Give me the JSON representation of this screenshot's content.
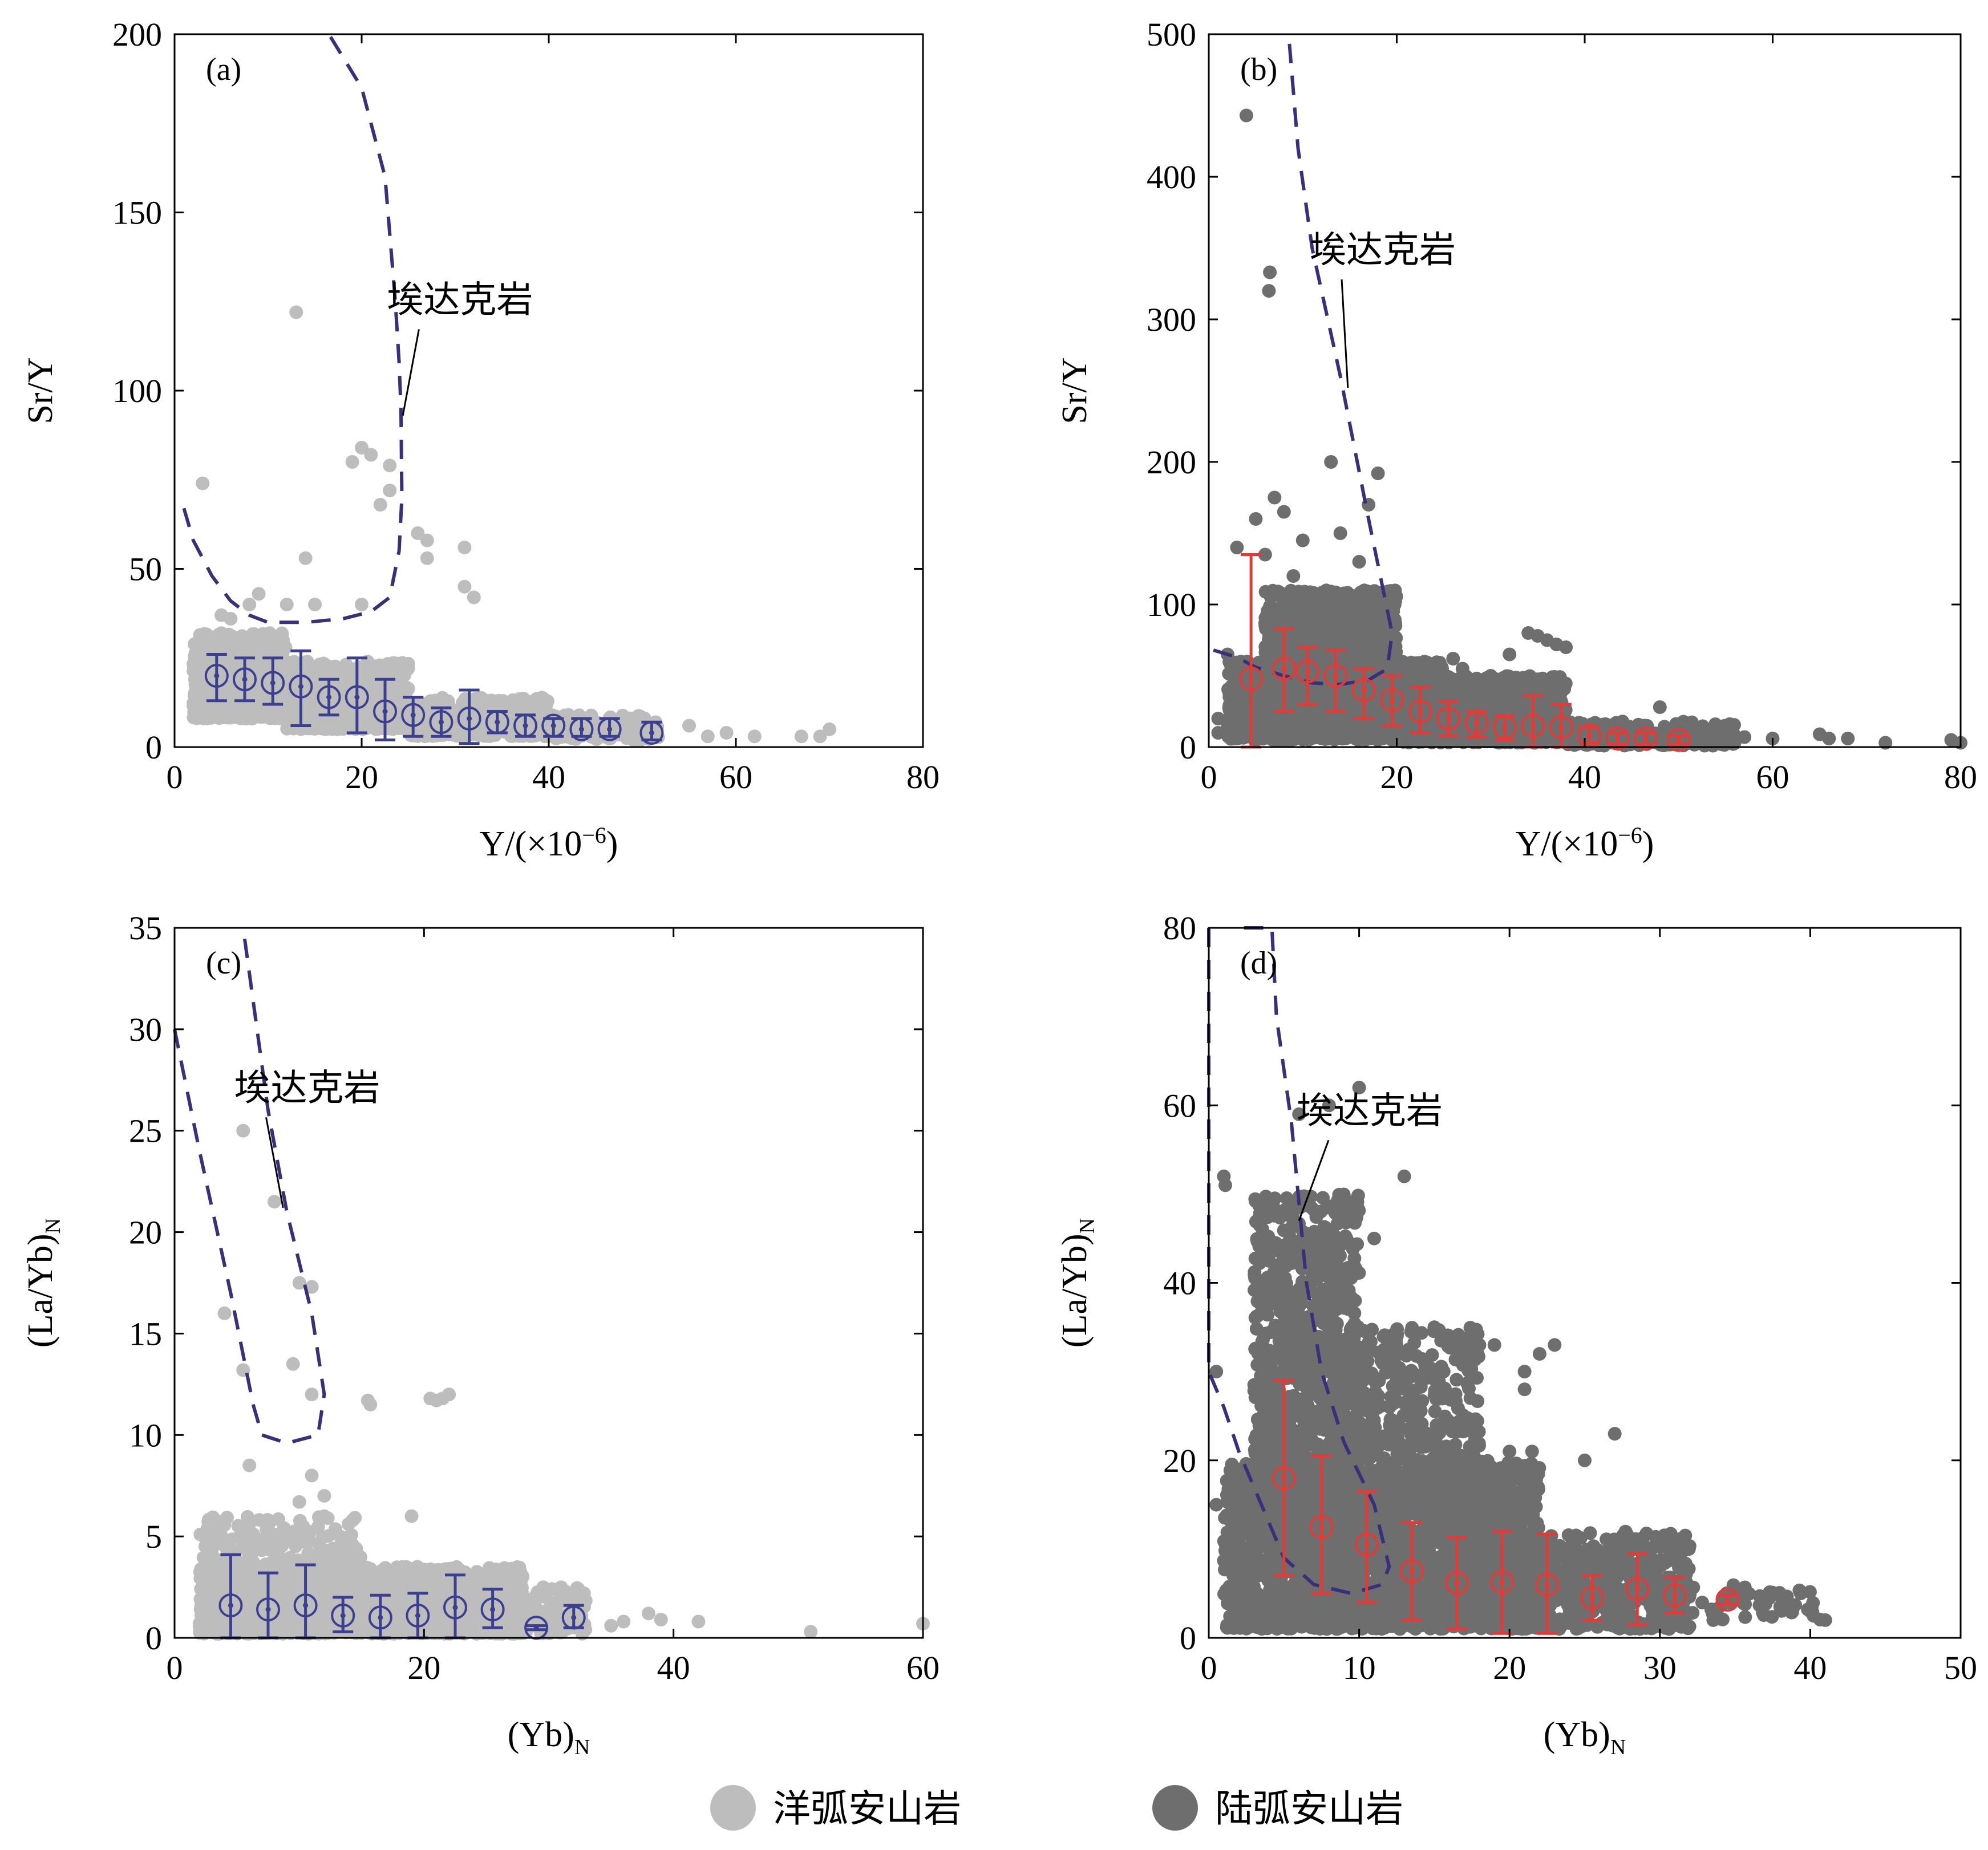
{
  "colors": {
    "oceanic": "#bdbdbd",
    "continental": "#6e6e6e",
    "oceanic_mean": "#3b3f8f",
    "continental_mean": "#e53935",
    "adakite_boundary": "#3a2f7a"
  },
  "legend": {
    "oceanic_label": "洋弧安山岩",
    "continental_label": "陆弧安山岩"
  },
  "chart_data": [
    {
      "type": "scatter",
      "panel": "(a)",
      "xlabel": "Y/(×10⁻⁶)",
      "ylabel": "Sr/Y",
      "xlim": [
        0,
        80
      ],
      "ylim": [
        0,
        200
      ],
      "xticks": [
        0,
        20,
        40,
        60,
        80
      ],
      "yticks": [
        0,
        50,
        100,
        150,
        200
      ],
      "annotation": "埃达克岩",
      "group": "oceanic",
      "cloud": [
        {
          "x0": 2,
          "x1": 12,
          "y0": 8,
          "y1": 32,
          "n": 700
        },
        {
          "x0": 12,
          "x1": 25,
          "y0": 5,
          "y1": 24,
          "n": 650
        },
        {
          "x0": 25,
          "x1": 40,
          "y0": 3,
          "y1": 14,
          "n": 420
        },
        {
          "x0": 40,
          "x1": 52,
          "y0": 2,
          "y1": 9,
          "n": 120
        }
      ],
      "outliers": [
        [
          13,
          122
        ],
        [
          20,
          84
        ],
        [
          21,
          82
        ],
        [
          19,
          80
        ],
        [
          23,
          79
        ],
        [
          22,
          68
        ],
        [
          23,
          72
        ],
        [
          3,
          74
        ],
        [
          26,
          60
        ],
        [
          27,
          58
        ],
        [
          27,
          53
        ],
        [
          31,
          56
        ],
        [
          31,
          45
        ],
        [
          32,
          42
        ],
        [
          14,
          53
        ],
        [
          9,
          43
        ],
        [
          8,
          40
        ],
        [
          12,
          40
        ],
        [
          15,
          40
        ],
        [
          20,
          40
        ],
        [
          55,
          6
        ],
        [
          57,
          3
        ],
        [
          59,
          4
        ],
        [
          62,
          3
        ],
        [
          67,
          3
        ],
        [
          69,
          3
        ],
        [
          70,
          5
        ],
        [
          5,
          37
        ],
        [
          6,
          36
        ]
      ],
      "boundary": [
        [
          1,
          67
        ],
        [
          2,
          58
        ],
        [
          4,
          48
        ],
        [
          6,
          41
        ],
        [
          8,
          37
        ],
        [
          10,
          35
        ],
        [
          14,
          35
        ],
        [
          18,
          36
        ],
        [
          21,
          38
        ],
        [
          23,
          42
        ],
        [
          24,
          55
        ],
        [
          24.3,
          70
        ],
        [
          24.2,
          95
        ],
        [
          24,
          108
        ],
        [
          23.6,
          125
        ],
        [
          22.5,
          160
        ],
        [
          20,
          185
        ],
        [
          16.5,
          200
        ]
      ],
      "label_anchor": [
        31,
        122
      ],
      "leader_end": [
        24.4,
        93
      ],
      "means": [
        {
          "x": 4.5,
          "y": 20,
          "lo": 13,
          "hi": 26
        },
        {
          "x": 7.5,
          "y": 19,
          "lo": 13,
          "hi": 25
        },
        {
          "x": 10.5,
          "y": 18,
          "lo": 12,
          "hi": 25
        },
        {
          "x": 13.5,
          "y": 17,
          "lo": 6,
          "hi": 27
        },
        {
          "x": 16.5,
          "y": 14,
          "lo": 9,
          "hi": 19
        },
        {
          "x": 19.5,
          "y": 14,
          "lo": 4,
          "hi": 25
        },
        {
          "x": 22.5,
          "y": 10,
          "lo": 2,
          "hi": 19
        },
        {
          "x": 25.5,
          "y": 9,
          "lo": 3,
          "hi": 14
        },
        {
          "x": 28.5,
          "y": 7,
          "lo": 3,
          "hi": 11
        },
        {
          "x": 31.5,
          "y": 8,
          "lo": 1,
          "hi": 16
        },
        {
          "x": 34.5,
          "y": 7,
          "lo": 4,
          "hi": 10
        },
        {
          "x": 37.5,
          "y": 6,
          "lo": 3,
          "hi": 9
        },
        {
          "x": 40.5,
          "y": 6,
          "lo": 3,
          "hi": 8
        },
        {
          "x": 43.5,
          "y": 5,
          "lo": 3,
          "hi": 8
        },
        {
          "x": 46.5,
          "y": 5,
          "lo": 3,
          "hi": 8
        },
        {
          "x": 51,
          "y": 4,
          "lo": 2,
          "hi": 7
        }
      ]
    },
    {
      "type": "scatter",
      "panel": "(b)",
      "xlabel": "Y/(×10⁻⁶)",
      "ylabel": "Sr/Y",
      "xlim": [
        0,
        80
      ],
      "ylim": [
        0,
        500
      ],
      "xticks": [
        0,
        20,
        40,
        60,
        80
      ],
      "yticks": [
        0,
        100,
        200,
        300,
        400,
        500
      ],
      "annotation": "埃达克岩",
      "group": "continental",
      "cloud": [
        {
          "x0": 6,
          "x1": 20,
          "y0": 40,
          "y1": 110,
          "n": 1100
        },
        {
          "x0": 2,
          "x1": 25,
          "y0": 5,
          "y1": 60,
          "n": 1400
        },
        {
          "x0": 20,
          "x1": 38,
          "y0": 3,
          "y1": 50,
          "n": 900
        },
        {
          "x0": 38,
          "x1": 56,
          "y0": 1,
          "y1": 18,
          "n": 180
        }
      ],
      "outliers": [
        [
          4,
          443
        ],
        [
          3,
          140
        ],
        [
          5,
          160
        ],
        [
          7,
          175
        ],
        [
          8,
          165
        ],
        [
          10,
          145
        ],
        [
          13,
          200
        ],
        [
          14,
          150
        ],
        [
          17,
          170
        ],
        [
          18,
          192
        ],
        [
          6,
          135
        ],
        [
          9,
          120
        ],
        [
          16,
          130
        ],
        [
          34,
          80
        ],
        [
          35,
          78
        ],
        [
          36,
          75
        ],
        [
          37,
          72
        ],
        [
          38,
          70
        ],
        [
          32,
          65
        ],
        [
          27,
          55
        ],
        [
          26,
          62
        ],
        [
          30,
          50
        ],
        [
          48,
          28
        ],
        [
          50,
          14
        ],
        [
          55,
          8
        ],
        [
          57,
          7
        ],
        [
          60,
          6
        ],
        [
          65,
          9
        ],
        [
          66,
          6
        ],
        [
          68,
          6
        ],
        [
          72,
          3
        ],
        [
          79,
          5
        ],
        [
          80,
          3
        ],
        [
          1,
          10
        ],
        [
          1,
          20
        ],
        [
          2,
          65
        ]
      ],
      "extras": [
        [
          6.5,
          333
        ],
        [
          6.4,
          320
        ]
      ],
      "boundary": [
        [
          0.5,
          68
        ],
        [
          3,
          63
        ],
        [
          5,
          56
        ],
        [
          8,
          50
        ],
        [
          11,
          45
        ],
        [
          14,
          44
        ],
        [
          17,
          47
        ],
        [
          19,
          55
        ],
        [
          19.5,
          80
        ],
        [
          17,
          160
        ],
        [
          14,
          260
        ],
        [
          11,
          350
        ],
        [
          9.5,
          420
        ],
        [
          8.5,
          500
        ]
      ],
      "label_anchor": [
        19,
        340
      ],
      "leader_end": [
        14.8,
        252
      ],
      "means": [
        {
          "x": 4.5,
          "y": 48,
          "lo": 0,
          "hi": 135
        },
        {
          "x": 8,
          "y": 55,
          "lo": 25,
          "hi": 83
        },
        {
          "x": 10.5,
          "y": 53,
          "lo": 30,
          "hi": 70
        },
        {
          "x": 13.5,
          "y": 50,
          "lo": 25,
          "hi": 68
        },
        {
          "x": 16.5,
          "y": 40,
          "lo": 20,
          "hi": 55
        },
        {
          "x": 19.5,
          "y": 33,
          "lo": 15,
          "hi": 50
        },
        {
          "x": 22.5,
          "y": 25,
          "lo": 10,
          "hi": 42
        },
        {
          "x": 25.5,
          "y": 20,
          "lo": 8,
          "hi": 32
        },
        {
          "x": 28.5,
          "y": 17,
          "lo": 7,
          "hi": 25
        },
        {
          "x": 31.5,
          "y": 14,
          "lo": 5,
          "hi": 22
        },
        {
          "x": 34.5,
          "y": 15,
          "lo": 0,
          "hi": 36
        },
        {
          "x": 37.5,
          "y": 14,
          "lo": 0,
          "hi": 30
        },
        {
          "x": 40.5,
          "y": 8,
          "lo": 3,
          "hi": 14
        },
        {
          "x": 43.5,
          "y": 6,
          "lo": 2,
          "hi": 10
        },
        {
          "x": 46.5,
          "y": 6,
          "lo": 2,
          "hi": 10
        },
        {
          "x": 50,
          "y": 5,
          "lo": 2,
          "hi": 8
        }
      ]
    },
    {
      "type": "scatter",
      "panel": "(c)",
      "xlabel": "(Yb)N",
      "ylabel": "(La/Yb)N",
      "xlim": [
        0,
        60
      ],
      "ylim": [
        0,
        35
      ],
      "xticks": [
        0,
        20,
        40,
        60
      ],
      "yticks": [
        0,
        5,
        10,
        15,
        20,
        25,
        30,
        35
      ],
      "annotation": "埃达克岩",
      "group": "oceanic",
      "cloud": [
        {
          "x0": 2,
          "x1": 28,
          "y0": 0.2,
          "y1": 3.5,
          "n": 1700
        },
        {
          "x0": 2,
          "x1": 15,
          "y0": 1,
          "y1": 6,
          "n": 350
        },
        {
          "x0": 25,
          "x1": 33,
          "y0": 0.2,
          "y1": 2.5,
          "n": 150
        }
      ],
      "outliers": [
        [
          5.5,
          25
        ],
        [
          8,
          21.5
        ],
        [
          4,
          16
        ],
        [
          10,
          17.5
        ],
        [
          11,
          17.3
        ],
        [
          5.5,
          13.2
        ],
        [
          9.5,
          13.5
        ],
        [
          11,
          12
        ],
        [
          15.5,
          11.7
        ],
        [
          15.7,
          11.5
        ],
        [
          20.5,
          11.8
        ],
        [
          21,
          11.7
        ],
        [
          21.5,
          11.8
        ],
        [
          22,
          12
        ],
        [
          6,
          8.5
        ],
        [
          11,
          8
        ],
        [
          10,
          6.7
        ],
        [
          12,
          7
        ],
        [
          12,
          6
        ],
        [
          3,
          4.8
        ],
        [
          19,
          6
        ],
        [
          35,
          0.6
        ],
        [
          36,
          0.8
        ],
        [
          38,
          1.2
        ],
        [
          39,
          0.9
        ],
        [
          42,
          0.8
        ],
        [
          51,
          0.3
        ],
        [
          60,
          0.7
        ]
      ],
      "boundary": [
        [
          0,
          30
        ],
        [
          2,
          24
        ],
        [
          4.5,
          17
        ],
        [
          6.3,
          11.5
        ],
        [
          7,
          10
        ],
        [
          9,
          9.6
        ],
        [
          11.5,
          10
        ],
        [
          12,
          12
        ],
        [
          11,
          16
        ],
        [
          9,
          21
        ],
        [
          7.5,
          26
        ],
        [
          5.5,
          35
        ]
      ],
      "label_anchor": [
        11,
        26.5
      ],
      "leader_end": [
        8.7,
        21.2
      ],
      "means": [
        {
          "x": 4.5,
          "y": 1.6,
          "lo": 0,
          "hi": 4.1
        },
        {
          "x": 7.5,
          "y": 1.4,
          "lo": 0,
          "hi": 3.2
        },
        {
          "x": 10.5,
          "y": 1.6,
          "lo": 0,
          "hi": 3.6
        },
        {
          "x": 13.5,
          "y": 1.1,
          "lo": 0.3,
          "hi": 2
        },
        {
          "x": 16.5,
          "y": 1,
          "lo": 0,
          "hi": 2.1
        },
        {
          "x": 19.5,
          "y": 1.1,
          "lo": 0,
          "hi": 2.2
        },
        {
          "x": 22.5,
          "y": 1.5,
          "lo": 0,
          "hi": 3.1
        },
        {
          "x": 25.5,
          "y": 1.4,
          "lo": 0.5,
          "hi": 2.4
        },
        {
          "x": 29,
          "y": 0.5,
          "lo": 0.4,
          "hi": 0.6
        },
        {
          "x": 32,
          "y": 1,
          "lo": 0.5,
          "hi": 1.6
        }
      ]
    },
    {
      "type": "scatter",
      "panel": "(d)",
      "xlabel": "(Yb)N",
      "ylabel": "(La/Yb)N",
      "xlim": [
        0,
        50
      ],
      "ylim": [
        0,
        80
      ],
      "xticks": [
        0,
        10,
        20,
        30,
        40,
        50
      ],
      "yticks": [
        0,
        20,
        40,
        60,
        80
      ],
      "annotation": "埃达克岩",
      "group": "continental",
      "cloud": [
        {
          "x0": 3,
          "x1": 10,
          "y0": 10,
          "y1": 50,
          "n": 1100
        },
        {
          "x0": 1,
          "x1": 22,
          "y0": 1,
          "y1": 20,
          "n": 2200
        },
        {
          "x0": 18,
          "x1": 32,
          "y0": 1,
          "y1": 12,
          "n": 700
        },
        {
          "x0": 8,
          "x1": 18,
          "y0": 15,
          "y1": 35,
          "n": 500
        },
        {
          "x0": 30,
          "x1": 41,
          "y0": 2,
          "y1": 6,
          "n": 60
        }
      ],
      "outliers": [
        [
          6,
          59
        ],
        [
          8,
          60
        ],
        [
          10,
          62
        ],
        [
          13,
          52
        ],
        [
          11,
          45
        ],
        [
          1,
          52
        ],
        [
          1.1,
          51
        ],
        [
          15,
          35
        ],
        [
          16,
          34
        ],
        [
          17,
          33
        ],
        [
          18,
          33
        ],
        [
          19,
          33
        ],
        [
          23,
          33
        ],
        [
          22,
          32
        ],
        [
          27,
          23
        ],
        [
          21,
          30
        ],
        [
          21,
          28
        ],
        [
          20,
          21
        ],
        [
          21.5,
          21
        ],
        [
          25,
          20
        ],
        [
          35,
          5
        ],
        [
          38,
          3.5
        ],
        [
          39,
          3.7
        ],
        [
          40,
          3
        ],
        [
          41,
          2
        ],
        [
          0.5,
          30
        ],
        [
          0.5,
          15
        ]
      ],
      "boundary_left": [
        [
          0,
          80
        ],
        [
          0,
          30
        ],
        [
          1,
          26
        ],
        [
          2,
          21
        ],
        [
          3.5,
          15
        ],
        [
          5,
          9
        ],
        [
          7,
          6
        ],
        [
          9.5,
          5
        ],
        [
          11.5,
          6
        ],
        [
          12,
          8
        ],
        [
          11,
          15
        ],
        [
          9,
          22
        ],
        [
          7.5,
          30
        ],
        [
          6.5,
          40
        ],
        [
          5.5,
          58
        ],
        [
          4.5,
          70
        ],
        [
          4.2,
          80
        ],
        [
          2,
          80
        ]
      ],
      "label_anchor": [
        11,
        58
      ],
      "leader_end": [
        6,
        47
      ],
      "means": [
        {
          "x": 5,
          "y": 18,
          "lo": 7,
          "hi": 29
        },
        {
          "x": 7.5,
          "y": 12.5,
          "lo": 5,
          "hi": 20.5
        },
        {
          "x": 10.5,
          "y": 10.5,
          "lo": 4,
          "hi": 16.5
        },
        {
          "x": 13.5,
          "y": 7.5,
          "lo": 2,
          "hi": 13
        },
        {
          "x": 16.5,
          "y": 6.2,
          "lo": 1,
          "hi": 11.3
        },
        {
          "x": 19.5,
          "y": 6.3,
          "lo": 0.5,
          "hi": 12
        },
        {
          "x": 22.5,
          "y": 6,
          "lo": 0.5,
          "hi": 11.7
        },
        {
          "x": 25.5,
          "y": 4.5,
          "lo": 2,
          "hi": 7
        },
        {
          "x": 28.5,
          "y": 5.5,
          "lo": 1.5,
          "hi": 9.5
        },
        {
          "x": 31,
          "y": 4.8,
          "lo": 2.8,
          "hi": 6.8
        },
        {
          "x": 34.5,
          "y": 4.3,
          "lo": 3.8,
          "hi": 4.8
        }
      ]
    }
  ]
}
